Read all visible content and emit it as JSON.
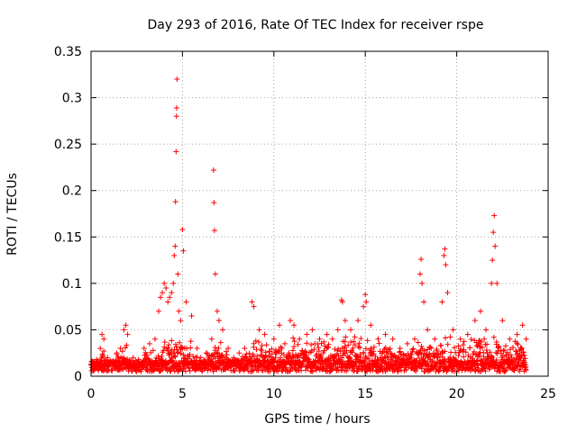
{
  "chart_data": {
    "type": "scatter",
    "title": "Day 293 of 2016, Rate Of TEC Index for receiver rspe",
    "xlabel": "GPS time / hours",
    "ylabel": "ROTI / TECUs",
    "xlim": [
      0,
      25
    ],
    "ylim": [
      0,
      0.35
    ],
    "xticks": [
      0,
      5,
      10,
      15,
      20,
      25
    ],
    "yticks": [
      0,
      0.05,
      0.1,
      0.15,
      0.2,
      0.25,
      0.3,
      0.35
    ],
    "ytick_labels": [
      "0",
      "0.05",
      "0.1",
      "0.15",
      "0.2",
      "0.25",
      "0.3",
      "0.35"
    ],
    "grid": true,
    "marker": "+",
    "color": "#ff0000",
    "series": [
      {
        "name": "ROTI",
        "points": [
          [
            0.1,
            0.012
          ],
          [
            0.3,
            0.018
          ],
          [
            0.5,
            0.03
          ],
          [
            0.6,
            0.045
          ],
          [
            0.7,
            0.04
          ],
          [
            0.9,
            0.02
          ],
          [
            1.2,
            0.015
          ],
          [
            1.4,
            0.025
          ],
          [
            1.6,
            0.03
          ],
          [
            1.8,
            0.05
          ],
          [
            1.9,
            0.055
          ],
          [
            2.0,
            0.045
          ],
          [
            2.3,
            0.02
          ],
          [
            2.6,
            0.018
          ],
          [
            2.9,
            0.03
          ],
          [
            3.2,
            0.035
          ],
          [
            3.5,
            0.04
          ],
          [
            3.7,
            0.07
          ],
          [
            3.8,
            0.085
          ],
          [
            3.9,
            0.09
          ],
          [
            4.0,
            0.1
          ],
          [
            4.1,
            0.095
          ],
          [
            4.2,
            0.08
          ],
          [
            4.3,
            0.085
          ],
          [
            4.4,
            0.09
          ],
          [
            4.5,
            0.1
          ],
          [
            4.55,
            0.13
          ],
          [
            4.6,
            0.14
          ],
          [
            4.62,
            0.188
          ],
          [
            4.65,
            0.242
          ],
          [
            4.67,
            0.28
          ],
          [
            4.68,
            0.289
          ],
          [
            4.7,
            0.32
          ],
          [
            4.75,
            0.11
          ],
          [
            4.8,
            0.07
          ],
          [
            4.9,
            0.06
          ],
          [
            5.0,
            0.158
          ],
          [
            5.05,
            0.135
          ],
          [
            5.2,
            0.08
          ],
          [
            5.5,
            0.065
          ],
          [
            5.8,
            0.03
          ],
          [
            6.0,
            0.02
          ],
          [
            6.3,
            0.025
          ],
          [
            6.6,
            0.04
          ],
          [
            6.7,
            0.222
          ],
          [
            6.72,
            0.187
          ],
          [
            6.75,
            0.157
          ],
          [
            6.8,
            0.11
          ],
          [
            6.9,
            0.07
          ],
          [
            7.0,
            0.06
          ],
          [
            7.2,
            0.05
          ],
          [
            7.5,
            0.03
          ],
          [
            7.8,
            0.02
          ],
          [
            8.1,
            0.025
          ],
          [
            8.4,
            0.03
          ],
          [
            8.8,
            0.08
          ],
          [
            8.9,
            0.075
          ],
          [
            9.2,
            0.05
          ],
          [
            9.5,
            0.045
          ],
          [
            10.0,
            0.04
          ],
          [
            10.3,
            0.055
          ],
          [
            10.6,
            0.035
          ],
          [
            10.9,
            0.06
          ],
          [
            11.1,
            0.055
          ],
          [
            11.4,
            0.04
          ],
          [
            11.8,
            0.045
          ],
          [
            12.1,
            0.05
          ],
          [
            12.5,
            0.04
          ],
          [
            12.9,
            0.045
          ],
          [
            13.2,
            0.04
          ],
          [
            13.5,
            0.05
          ],
          [
            13.7,
            0.082
          ],
          [
            13.75,
            0.08
          ],
          [
            13.9,
            0.06
          ],
          [
            14.2,
            0.05
          ],
          [
            14.6,
            0.06
          ],
          [
            14.9,
            0.075
          ],
          [
            15.0,
            0.088
          ],
          [
            15.05,
            0.08
          ],
          [
            15.3,
            0.055
          ],
          [
            15.7,
            0.04
          ],
          [
            16.1,
            0.045
          ],
          [
            16.5,
            0.04
          ],
          [
            16.9,
            0.03
          ],
          [
            17.3,
            0.035
          ],
          [
            17.7,
            0.04
          ],
          [
            18.0,
            0.11
          ],
          [
            18.05,
            0.126
          ],
          [
            18.1,
            0.1
          ],
          [
            18.2,
            0.08
          ],
          [
            18.4,
            0.05
          ],
          [
            18.8,
            0.04
          ],
          [
            19.2,
            0.08
          ],
          [
            19.3,
            0.13
          ],
          [
            19.35,
            0.137
          ],
          [
            19.4,
            0.12
          ],
          [
            19.5,
            0.09
          ],
          [
            19.8,
            0.05
          ],
          [
            20.2,
            0.04
          ],
          [
            20.6,
            0.045
          ],
          [
            21.0,
            0.06
          ],
          [
            21.3,
            0.07
          ],
          [
            21.6,
            0.05
          ],
          [
            21.9,
            0.1
          ],
          [
            21.95,
            0.125
          ],
          [
            22.0,
            0.155
          ],
          [
            22.05,
            0.173
          ],
          [
            22.1,
            0.14
          ],
          [
            22.2,
            0.1
          ],
          [
            22.5,
            0.06
          ],
          [
            22.9,
            0.04
          ],
          [
            23.3,
            0.045
          ],
          [
            23.6,
            0.055
          ],
          [
            23.8,
            0.04
          ]
        ]
      }
    ]
  }
}
